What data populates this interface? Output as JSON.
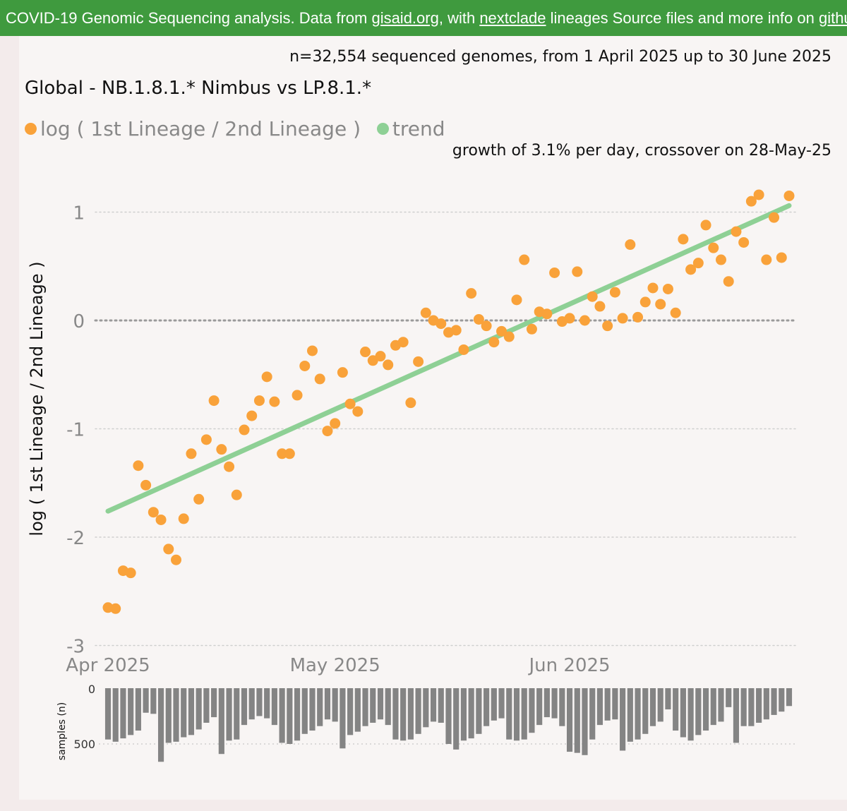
{
  "banner": {
    "prefix": "COVID-19 Genomic Sequencing analysis. Data from ",
    "link1": "gisaid.org",
    "mid1": ", with ",
    "link2": "nextclade",
    "mid2": " lineages Source files and more info on ",
    "link3": "github"
  },
  "subtitle": "n=32,554 sequenced genomes, from 1 April 2025 up to 30 June 2025",
  "growth_note": "growth of 3.1% per day, crossover on 28-May-25",
  "colors": {
    "points": "#f9a23a",
    "trend": "#8ed095",
    "bars": "#848484",
    "banner": "#3f9a3e"
  },
  "chart_data": [
    {
      "type": "scatter",
      "title": "Global - NB.1.8.1.* Nimbus vs LP.8.1.*",
      "ylabel": "log ( 1st Lineage / 2nd Lineage )",
      "ylim": [
        -3,
        1.2
      ],
      "yticks": [
        -3,
        -2,
        -1,
        0,
        1
      ],
      "xlim": [
        "2025-04-01",
        "2025-06-30"
      ],
      "xticks": [
        {
          "date": "2025-04-01",
          "label": "Apr 2025"
        },
        {
          "date": "2025-05-01",
          "label": "May 2025"
        },
        {
          "date": "2025-06-01",
          "label": "Jun 2025"
        }
      ],
      "grid": "horizontal dotted, bold dotted line at 0",
      "legend": "top-left",
      "series": [
        {
          "name": "log ( 1st Lineage / 2nd Lineage )",
          "x": [
            "2025-04-01",
            "2025-04-02",
            "2025-04-03",
            "2025-04-04",
            "2025-04-05",
            "2025-04-06",
            "2025-04-07",
            "2025-04-08",
            "2025-04-09",
            "2025-04-10",
            "2025-04-11",
            "2025-04-12",
            "2025-04-13",
            "2025-04-14",
            "2025-04-15",
            "2025-04-16",
            "2025-04-17",
            "2025-04-18",
            "2025-04-19",
            "2025-04-20",
            "2025-04-21",
            "2025-04-22",
            "2025-04-23",
            "2025-04-24",
            "2025-04-25",
            "2025-04-26",
            "2025-04-27",
            "2025-04-28",
            "2025-04-29",
            "2025-04-30",
            "2025-05-01",
            "2025-05-02",
            "2025-05-03",
            "2025-05-04",
            "2025-05-05",
            "2025-05-06",
            "2025-05-07",
            "2025-05-08",
            "2025-05-09",
            "2025-05-10",
            "2025-05-11",
            "2025-05-12",
            "2025-05-13",
            "2025-05-14",
            "2025-05-15",
            "2025-05-16",
            "2025-05-17",
            "2025-05-18",
            "2025-05-19",
            "2025-05-20",
            "2025-05-21",
            "2025-05-22",
            "2025-05-23",
            "2025-05-24",
            "2025-05-25",
            "2025-05-26",
            "2025-05-27",
            "2025-05-28",
            "2025-05-29",
            "2025-05-30",
            "2025-05-31",
            "2025-06-01",
            "2025-06-02",
            "2025-06-03",
            "2025-06-04",
            "2025-06-05",
            "2025-06-06",
            "2025-06-07",
            "2025-06-08",
            "2025-06-09",
            "2025-06-10",
            "2025-06-11",
            "2025-06-12",
            "2025-06-13",
            "2025-06-14",
            "2025-06-15",
            "2025-06-16",
            "2025-06-17",
            "2025-06-18",
            "2025-06-19",
            "2025-06-20",
            "2025-06-21",
            "2025-06-22",
            "2025-06-23",
            "2025-06-24",
            "2025-06-25",
            "2025-06-26",
            "2025-06-27",
            "2025-06-28",
            "2025-06-29",
            "2025-06-30"
          ],
          "y": [
            -2.65,
            -2.66,
            -2.31,
            -2.33,
            -1.34,
            -1.52,
            -1.77,
            -1.84,
            -2.11,
            -2.21,
            -1.83,
            -1.23,
            -1.65,
            -1.1,
            -0.74,
            -1.19,
            -1.35,
            -1.61,
            -1.01,
            -0.88,
            -0.74,
            -0.52,
            -0.75,
            -1.23,
            -1.23,
            -0.69,
            -0.42,
            -0.28,
            -0.54,
            -1.02,
            -0.95,
            -0.48,
            -0.77,
            -0.84,
            -0.29,
            -0.37,
            -0.33,
            -0.41,
            -0.23,
            -0.2,
            -0.76,
            -0.38,
            0.07,
            0.0,
            -0.03,
            -0.11,
            -0.09,
            -0.27,
            0.25,
            0.01,
            -0.05,
            -0.2,
            -0.1,
            -0.15,
            0.19,
            0.56,
            -0.08,
            0.08,
            0.06,
            0.44,
            -0.01,
            0.02,
            0.45,
            0.0,
            0.22,
            0.13,
            -0.05,
            0.26,
            0.02,
            0.7,
            0.03,
            0.17,
            0.3,
            0.15,
            0.29,
            0.07,
            0.75,
            0.47,
            0.53,
            0.88,
            0.67,
            0.56,
            0.36,
            0.82,
            0.72,
            1.1,
            1.16,
            0.56,
            0.95,
            0.58,
            1.15
          ]
        },
        {
          "name": "trend",
          "x": [
            "2025-04-01",
            "2025-06-30"
          ],
          "y": [
            -1.76,
            1.06
          ]
        }
      ]
    },
    {
      "type": "bar",
      "ylabel": "samples (n)",
      "ylim": [
        0,
        680
      ],
      "yticks": [
        0,
        500
      ],
      "orientation": "downward",
      "x": [
        "2025-04-01",
        "2025-04-02",
        "2025-04-03",
        "2025-04-04",
        "2025-04-05",
        "2025-04-06",
        "2025-04-07",
        "2025-04-08",
        "2025-04-09",
        "2025-04-10",
        "2025-04-11",
        "2025-04-12",
        "2025-04-13",
        "2025-04-14",
        "2025-04-15",
        "2025-04-16",
        "2025-04-17",
        "2025-04-18",
        "2025-04-19",
        "2025-04-20",
        "2025-04-21",
        "2025-04-22",
        "2025-04-23",
        "2025-04-24",
        "2025-04-25",
        "2025-04-26",
        "2025-04-27",
        "2025-04-28",
        "2025-04-29",
        "2025-04-30",
        "2025-05-01",
        "2025-05-02",
        "2025-05-03",
        "2025-05-04",
        "2025-05-05",
        "2025-05-06",
        "2025-05-07",
        "2025-05-08",
        "2025-05-09",
        "2025-05-10",
        "2025-05-11",
        "2025-05-12",
        "2025-05-13",
        "2025-05-14",
        "2025-05-15",
        "2025-05-16",
        "2025-05-17",
        "2025-05-18",
        "2025-05-19",
        "2025-05-20",
        "2025-05-21",
        "2025-05-22",
        "2025-05-23",
        "2025-05-24",
        "2025-05-25",
        "2025-05-26",
        "2025-05-27",
        "2025-05-28",
        "2025-05-29",
        "2025-05-30",
        "2025-05-31",
        "2025-06-01",
        "2025-06-02",
        "2025-06-03",
        "2025-06-04",
        "2025-06-05",
        "2025-06-06",
        "2025-06-07",
        "2025-06-08",
        "2025-06-09",
        "2025-06-10",
        "2025-06-11",
        "2025-06-12",
        "2025-06-13",
        "2025-06-14",
        "2025-06-15",
        "2025-06-16",
        "2025-06-17",
        "2025-06-18",
        "2025-06-19",
        "2025-06-20",
        "2025-06-21",
        "2025-06-22",
        "2025-06-23",
        "2025-06-24",
        "2025-06-25",
        "2025-06-26",
        "2025-06-27",
        "2025-06-28",
        "2025-06-29",
        "2025-06-30"
      ],
      "values": [
        460,
        480,
        450,
        420,
        380,
        220,
        230,
        660,
        490,
        480,
        440,
        420,
        370,
        310,
        260,
        590,
        470,
        460,
        330,
        280,
        250,
        270,
        330,
        490,
        500,
        470,
        410,
        380,
        340,
        280,
        300,
        540,
        420,
        390,
        340,
        310,
        280,
        330,
        460,
        470,
        460,
        410,
        350,
        300,
        310,
        500,
        550,
        470,
        450,
        410,
        340,
        290,
        270,
        460,
        470,
        460,
        400,
        330,
        260,
        270,
        340,
        570,
        580,
        600,
        460,
        330,
        290,
        280,
        560,
        480,
        460,
        410,
        340,
        300,
        190,
        380,
        440,
        470,
        420,
        380,
        330,
        300,
        170,
        490,
        340,
        340,
        310,
        280,
        240,
        210,
        160
      ]
    }
  ]
}
